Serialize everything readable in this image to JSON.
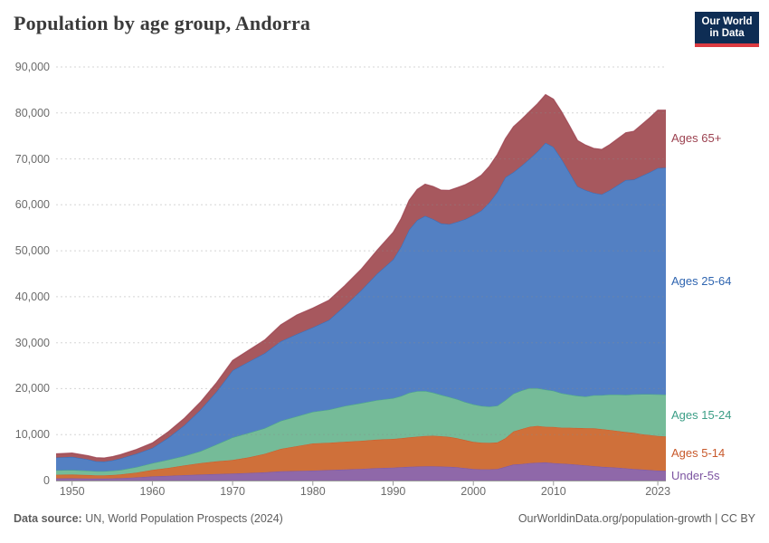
{
  "header": {
    "title": "Population by age group, Andorra"
  },
  "logo": {
    "line1": "Our World",
    "line2": "in Data",
    "bg": "#0e2d54",
    "accent": "#dc3b41"
  },
  "footer": {
    "source_label": "Data source:",
    "source_text": "UN, World Population Prospects (2024)",
    "right_text": "OurWorldinData.org/population-growth | CC BY"
  },
  "chart_data": {
    "type": "area",
    "stacked": true,
    "title": "Population by age group, Andorra",
    "entity": "Andorra",
    "grid": "dashed",
    "legend_position": "right-of-plot",
    "xlim": [
      1948,
      2024
    ],
    "ylim": [
      0,
      90000
    ],
    "x_ticks": [
      1950,
      1960,
      1970,
      1980,
      1990,
      2000,
      2010,
      2023
    ],
    "y_ticks": {
      "values": [
        0,
        10000,
        20000,
        30000,
        40000,
        50000,
        60000,
        70000,
        80000,
        90000
      ],
      "labels": [
        "0",
        "10,000",
        "20,000",
        "30,000",
        "40,000",
        "50,000",
        "60,000",
        "70,000",
        "80,000",
        "90,000"
      ]
    },
    "x": [
      1948,
      1950,
      1952,
      1953,
      1954,
      1955,
      1956,
      1958,
      1960,
      1962,
      1964,
      1966,
      1968,
      1970,
      1972,
      1974,
      1976,
      1978,
      1980,
      1982,
      1984,
      1986,
      1988,
      1990,
      1991,
      1992,
      1993,
      1994,
      1995,
      1996,
      1997,
      1998,
      1999,
      2000,
      2001,
      2002,
      2003,
      2004,
      2005,
      2006,
      2007,
      2008,
      2009,
      2010,
      2011,
      2012,
      2013,
      2014,
      2015,
      2016,
      2017,
      2018,
      2019,
      2020,
      2021,
      2022,
      2023,
      2024
    ],
    "series": [
      {
        "name": "Under-5s",
        "label_color": "#7c54a1",
        "fill": "#8f68a9",
        "values": [
          480,
          500,
          460,
          440,
          440,
          470,
          520,
          680,
          900,
          1050,
          1180,
          1300,
          1420,
          1520,
          1650,
          1800,
          2000,
          2080,
          2170,
          2280,
          2400,
          2550,
          2700,
          2820,
          2900,
          3000,
          3050,
          3100,
          3100,
          3050,
          3000,
          2900,
          2700,
          2500,
          2450,
          2450,
          2500,
          3000,
          3480,
          3600,
          3800,
          3900,
          3950,
          3800,
          3700,
          3600,
          3450,
          3300,
          3150,
          3000,
          2900,
          2800,
          2650,
          2500,
          2400,
          2280,
          2170,
          2150
        ]
      },
      {
        "name": "Ages 5-14",
        "label_color": "#c8592b",
        "fill": "#cf703a",
        "values": [
          780,
          800,
          740,
          700,
          700,
          740,
          800,
          1050,
          1400,
          1700,
          2100,
          2500,
          2750,
          2950,
          3400,
          4000,
          4900,
          5400,
          5900,
          5950,
          6050,
          6100,
          6200,
          6240,
          6300,
          6400,
          6500,
          6600,
          6650,
          6600,
          6500,
          6300,
          6100,
          5900,
          5800,
          5750,
          5800,
          6200,
          7210,
          7600,
          7900,
          8000,
          7750,
          7880,
          7800,
          7900,
          8000,
          8100,
          8210,
          8200,
          8100,
          8000,
          7900,
          7880,
          7700,
          7620,
          7540,
          7450
        ]
      },
      {
        "name": "Ages 15-24",
        "label_color": "#3b9e86",
        "fill": "#75bb98",
        "values": [
          980,
          1000,
          950,
          900,
          900,
          930,
          980,
          1200,
          1500,
          1800,
          2100,
          2600,
          3700,
          4920,
          5300,
          5600,
          6100,
          6500,
          6890,
          7200,
          7800,
          8200,
          8600,
          8860,
          9200,
          9700,
          9900,
          9800,
          9400,
          9000,
          8700,
          8500,
          8300,
          8200,
          8000,
          7900,
          8000,
          8300,
          8210,
          8400,
          8400,
          8200,
          8100,
          7880,
          7500,
          7200,
          7000,
          6900,
          7210,
          7400,
          7700,
          7900,
          8100,
          8390,
          8700,
          8900,
          9060,
          9100
        ]
      },
      {
        "name": "Ages 25-64",
        "label_color": "#2f65b0",
        "fill": "#5380c3",
        "values": [
          2760,
          2850,
          2450,
          2160,
          2100,
          2260,
          2500,
          2900,
          3290,
          4800,
          6700,
          9000,
          11500,
          14570,
          15500,
          16300,
          17300,
          17900,
          18380,
          19500,
          21800,
          24500,
          27500,
          30180,
          32500,
          35500,
          37200,
          38100,
          37750,
          37300,
          37600,
          38600,
          39800,
          41150,
          42500,
          44400,
          46500,
          48500,
          48200,
          48900,
          49900,
          51500,
          53700,
          53040,
          51000,
          48300,
          45550,
          44900,
          44030,
          43700,
          44500,
          45600,
          46750,
          46730,
          47500,
          48300,
          49230,
          49400
        ]
      },
      {
        "name": "Ages 65+",
        "label_color": "#9c4250",
        "fill": "#a7585e",
        "values": [
          820,
          850,
          800,
          780,
          790,
          800,
          830,
          950,
          1110,
          1300,
          1500,
          1700,
          1950,
          2170,
          2500,
          2900,
          3600,
          4150,
          4200,
          4300,
          4400,
          4600,
          5100,
          5900,
          6100,
          6400,
          6700,
          6900,
          7100,
          7250,
          7350,
          7450,
          7500,
          7550,
          7700,
          7900,
          8200,
          8400,
          9900,
          10100,
          10300,
          10400,
          10500,
          10400,
          10300,
          10200,
          10000,
          9800,
          9700,
          9760,
          9900,
          10100,
          10300,
          10500,
          11200,
          11900,
          12600,
          12500
        ]
      }
    ]
  }
}
